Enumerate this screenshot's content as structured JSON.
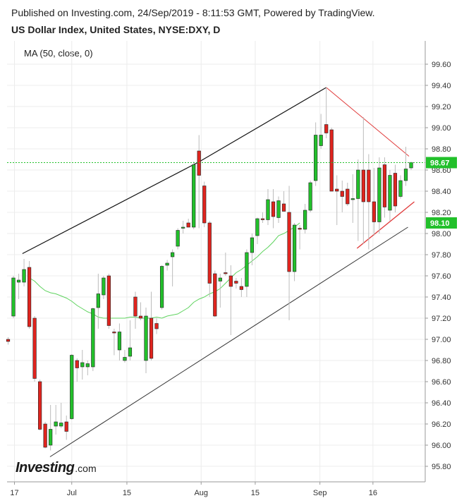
{
  "header": {
    "published": "Published on Investing.com, 24/Sep/2019 - 8:11:53 GMT, Powered by TradingView.",
    "symbol": "US Dollar Index, United States, NYSE:DXY, D"
  },
  "indicator_label": "MA (50, close, 0)",
  "logo": {
    "word": "Investing",
    "suffix": ".com"
  },
  "colors": {
    "up": "#22c02b",
    "down": "#e0241e",
    "ma": "#5fd35f",
    "last_price": "#22c02b",
    "ma_badge": "#22c02b",
    "channel_upper": "#111111",
    "channel_lower": "#333333",
    "wedge": "#e03a3a"
  },
  "chart_data": {
    "type": "candlestick",
    "y_ticks": [
      "95.80",
      "96.00",
      "96.20",
      "96.40",
      "96.60",
      "96.80",
      "97.00",
      "97.20",
      "97.40",
      "97.60",
      "97.80",
      "98.00",
      "98.20",
      "98.40",
      "98.60",
      "98.80",
      "99.00",
      "99.20",
      "99.40",
      "99.60"
    ],
    "x_ticks": [
      "17",
      "Jul",
      "15",
      "Aug",
      "15",
      "Sep",
      "16"
    ],
    "ylim": [
      95.72,
      99.72
    ],
    "last_price": {
      "value": 98.67,
      "label": "98.67"
    },
    "ma_last": {
      "value": 98.1,
      "label": "98.10"
    },
    "candles": [
      {
        "o": 97.0,
        "h": 97.02,
        "l": 96.95,
        "c": 96.98
      },
      {
        "o": 97.22,
        "h": 97.6,
        "l": 97.2,
        "c": 97.58
      },
      {
        "o": 97.54,
        "h": 97.62,
        "l": 97.38,
        "c": 97.56
      },
      {
        "o": 97.54,
        "h": 97.76,
        "l": 97.5,
        "c": 97.66
      },
      {
        "o": 97.68,
        "h": 97.74,
        "l": 97.1,
        "c": 97.12
      },
      {
        "o": 97.2,
        "h": 97.22,
        "l": 96.6,
        "c": 96.63
      },
      {
        "o": 96.6,
        "h": 96.62,
        "l": 96.14,
        "c": 96.15
      },
      {
        "o": 96.2,
        "h": 96.22,
        "l": 95.97,
        "c": 95.98
      },
      {
        "o": 96.0,
        "h": 96.38,
        "l": 95.95,
        "c": 96.15
      },
      {
        "o": 96.18,
        "h": 96.38,
        "l": 96.1,
        "c": 96.22
      },
      {
        "o": 96.18,
        "h": 96.4,
        "l": 96.16,
        "c": 96.21
      },
      {
        "o": 96.22,
        "h": 96.28,
        "l": 96.05,
        "c": 96.13
      },
      {
        "o": 96.25,
        "h": 96.86,
        "l": 96.24,
        "c": 96.85
      },
      {
        "o": 96.8,
        "h": 96.82,
        "l": 96.6,
        "c": 96.73
      },
      {
        "o": 96.74,
        "h": 96.9,
        "l": 96.62,
        "c": 96.78
      },
      {
        "o": 96.74,
        "h": 96.8,
        "l": 96.66,
        "c": 96.77
      },
      {
        "o": 96.74,
        "h": 97.3,
        "l": 96.7,
        "c": 97.29
      },
      {
        "o": 97.3,
        "h": 97.62,
        "l": 97.1,
        "c": 97.43
      },
      {
        "o": 97.42,
        "h": 97.6,
        "l": 97.38,
        "c": 97.58
      },
      {
        "o": 97.6,
        "h": 97.62,
        "l": 97.1,
        "c": 97.13
      },
      {
        "o": 97.07,
        "h": 97.1,
        "l": 96.85,
        "c": 97.06
      },
      {
        "o": 96.9,
        "h": 97.15,
        "l": 96.8,
        "c": 97.07
      },
      {
        "o": 96.8,
        "h": 96.9,
        "l": 96.78,
        "c": 96.83
      },
      {
        "o": 96.84,
        "h": 97.18,
        "l": 96.8,
        "c": 96.92
      },
      {
        "o": 97.4,
        "h": 97.45,
        "l": 97.1,
        "c": 97.22
      },
      {
        "o": 97.22,
        "h": 97.35,
        "l": 97.18,
        "c": 97.2
      },
      {
        "o": 96.8,
        "h": 97.3,
        "l": 96.68,
        "c": 97.22
      },
      {
        "o": 97.2,
        "h": 97.45,
        "l": 96.8,
        "c": 96.82
      },
      {
        "o": 97.15,
        "h": 97.2,
        "l": 97.05,
        "c": 97.1
      },
      {
        "o": 97.3,
        "h": 97.7,
        "l": 97.28,
        "c": 97.69
      },
      {
        "o": 97.7,
        "h": 97.75,
        "l": 97.65,
        "c": 97.72
      },
      {
        "o": 97.78,
        "h": 97.85,
        "l": 97.5,
        "c": 97.82
      },
      {
        "o": 97.88,
        "h": 98.05,
        "l": 97.85,
        "c": 98.03
      },
      {
        "o": 98.05,
        "h": 98.12,
        "l": 98.0,
        "c": 98.06
      },
      {
        "o": 98.1,
        "h": 98.14,
        "l": 98.06,
        "c": 98.06
      },
      {
        "o": 98.06,
        "h": 98.68,
        "l": 98.04,
        "c": 98.65
      },
      {
        "o": 98.78,
        "h": 98.93,
        "l": 98.05,
        "c": 98.55
      },
      {
        "o": 98.45,
        "h": 98.49,
        "l": 98.06,
        "c": 98.1
      },
      {
        "o": 98.1,
        "h": 98.12,
        "l": 97.4,
        "c": 97.53
      },
      {
        "o": 97.62,
        "h": 97.65,
        "l": 97.21,
        "c": 97.22
      },
      {
        "o": 97.55,
        "h": 97.62,
        "l": 97.3,
        "c": 97.58
      },
      {
        "o": 97.63,
        "h": 97.82,
        "l": 97.6,
        "c": 97.62
      },
      {
        "o": 97.6,
        "h": 97.7,
        "l": 97.04,
        "c": 97.5
      },
      {
        "o": 97.55,
        "h": 97.58,
        "l": 97.48,
        "c": 97.53
      },
      {
        "o": 97.5,
        "h": 97.58,
        "l": 97.4,
        "c": 97.47
      },
      {
        "o": 97.5,
        "h": 97.85,
        "l": 97.4,
        "c": 97.82
      },
      {
        "o": 97.82,
        "h": 98.0,
        "l": 97.7,
        "c": 97.96
      },
      {
        "o": 97.98,
        "h": 98.15,
        "l": 97.9,
        "c": 98.14
      },
      {
        "o": 98.14,
        "h": 98.2,
        "l": 98.1,
        "c": 98.13
      },
      {
        "o": 98.13,
        "h": 98.42,
        "l": 98.08,
        "c": 98.32
      },
      {
        "o": 98.3,
        "h": 98.42,
        "l": 98.05,
        "c": 98.16
      },
      {
        "o": 98.15,
        "h": 98.35,
        "l": 98.1,
        "c": 98.31
      },
      {
        "o": 98.28,
        "h": 98.4,
        "l": 98.22,
        "c": 98.21
      },
      {
        "o": 98.2,
        "h": 98.45,
        "l": 97.18,
        "c": 97.64
      },
      {
        "o": 97.64,
        "h": 98.1,
        "l": 97.55,
        "c": 98.08
      },
      {
        "o": 98.05,
        "h": 98.08,
        "l": 97.85,
        "c": 98.04
      },
      {
        "o": 98.04,
        "h": 98.28,
        "l": 98.0,
        "c": 98.22
      },
      {
        "o": 98.22,
        "h": 98.5,
        "l": 98.2,
        "c": 98.48
      },
      {
        "o": 98.5,
        "h": 99.05,
        "l": 98.45,
        "c": 98.93
      },
      {
        "o": 98.83,
        "h": 99.13,
        "l": 98.8,
        "c": 98.93
      },
      {
        "o": 99.03,
        "h": 99.38,
        "l": 98.9,
        "c": 98.95
      },
      {
        "o": 98.98,
        "h": 99.0,
        "l": 98.4,
        "c": 98.4
      },
      {
        "o": 98.42,
        "h": 98.55,
        "l": 98.08,
        "c": 98.4
      },
      {
        "o": 98.4,
        "h": 98.5,
        "l": 98.2,
        "c": 98.35
      },
      {
        "o": 98.42,
        "h": 98.48,
        "l": 98.26,
        "c": 98.28
      },
      {
        "o": 98.32,
        "h": 98.56,
        "l": 98.1,
        "c": 98.33
      },
      {
        "o": 98.33,
        "h": 98.7,
        "l": 97.93,
        "c": 98.6
      },
      {
        "o": 98.6,
        "h": 99.1,
        "l": 97.9,
        "c": 98.3
      },
      {
        "o": 98.6,
        "h": 98.75,
        "l": 97.85,
        "c": 98.3
      },
      {
        "o": 98.3,
        "h": 98.62,
        "l": 97.98,
        "c": 98.11
      },
      {
        "o": 98.11,
        "h": 98.72,
        "l": 98.0,
        "c": 98.62
      },
      {
        "o": 98.65,
        "h": 98.72,
        "l": 98.15,
        "c": 98.25
      },
      {
        "o": 98.22,
        "h": 98.6,
        "l": 98.12,
        "c": 98.55
      },
      {
        "o": 98.57,
        "h": 98.65,
        "l": 98.2,
        "c": 98.26
      },
      {
        "o": 98.35,
        "h": 98.55,
        "l": 98.33,
        "c": 98.5
      },
      {
        "o": 98.5,
        "h": 98.82,
        "l": 98.45,
        "c": 98.61
      },
      {
        "o": 98.62,
        "h": 98.68,
        "l": 98.6,
        "c": 98.67
      }
    ],
    "ma": [
      97.58,
      97.55,
      97.5,
      97.46,
      97.44,
      97.43,
      97.41,
      97.39,
      97.36,
      97.32,
      97.29,
      97.26,
      97.24,
      97.21,
      97.2,
      97.2,
      97.2,
      97.2,
      97.2,
      97.21,
      97.21,
      97.2,
      97.2,
      97.2,
      97.21,
      97.2,
      97.22,
      97.23,
      97.24,
      97.27,
      97.3,
      97.35,
      97.38,
      97.4,
      97.43,
      97.45,
      97.48,
      97.53,
      97.58,
      97.63,
      97.66,
      97.7,
      97.74,
      97.78,
      97.83,
      97.87,
      97.92,
      97.98,
      98.0,
      98.03,
      98.06,
      98.1
    ]
  }
}
